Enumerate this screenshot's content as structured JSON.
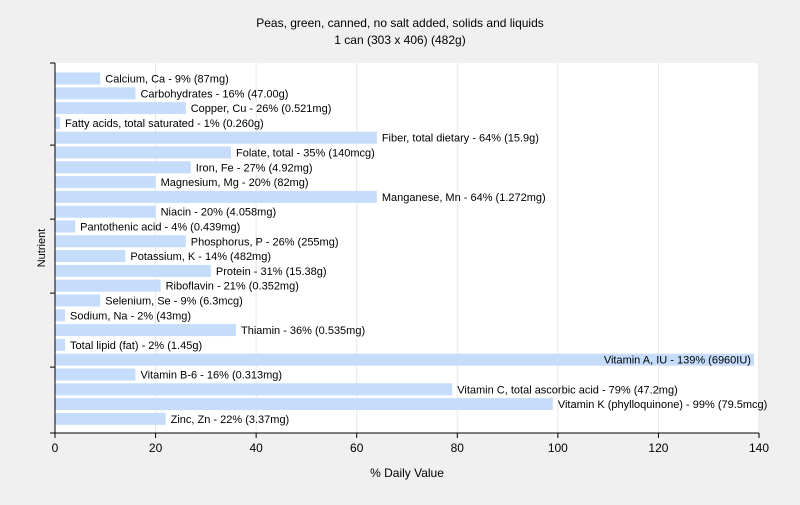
{
  "chart_data": {
    "type": "bar",
    "orientation": "horizontal",
    "title": "Peas, green, canned, no salt added, solids and liquids",
    "subtitle": "1 can (303 x 406) (482g)",
    "xlabel": "% Daily Value",
    "ylabel": "Nutrient",
    "xlim": [
      0,
      140
    ],
    "xticks": [
      "0",
      "20",
      "40",
      "60",
      "80",
      "100",
      "120",
      "140"
    ],
    "grid": true,
    "bar_color": "#c5ddfb",
    "background": "#f0f0f0",
    "plot_background": "#ffffff",
    "categories": [
      "Calcium, Ca",
      "Carbohydrates",
      "Copper, Cu",
      "Fatty acids, total saturated",
      "Fiber, total dietary",
      "Folate, total",
      "Iron, Fe",
      "Magnesium, Mg",
      "Manganese, Mn",
      "Niacin",
      "Pantothenic acid",
      "Phosphorus, P",
      "Potassium, K",
      "Protein",
      "Riboflavin",
      "Selenium, Se",
      "Sodium, Na",
      "Thiamin",
      "Total lipid (fat)",
      "Vitamin A, IU",
      "Vitamin B-6",
      "Vitamin C, total ascorbic acid",
      "Vitamin K (phylloquinone)",
      "Zinc, Zn"
    ],
    "values": [
      9,
      16,
      26,
      1,
      64,
      35,
      27,
      20,
      64,
      20,
      4,
      26,
      14,
      31,
      21,
      9,
      2,
      36,
      2,
      139,
      16,
      79,
      99,
      22
    ],
    "labels": [
      "Calcium, Ca - 9% (87mg)",
      "Carbohydrates - 16% (47.00g)",
      "Copper, Cu - 26% (0.521mg)",
      "Fatty acids, total saturated - 1% (0.260g)",
      "Fiber, total dietary - 64% (15.9g)",
      "Folate, total - 35% (140mcg)",
      "Iron, Fe - 27% (4.92mg)",
      "Magnesium, Mg - 20% (82mg)",
      "Manganese, Mn - 64% (1.272mg)",
      "Niacin - 20% (4.058mg)",
      "Pantothenic acid - 4% (0.439mg)",
      "Phosphorus, P - 26% (255mg)",
      "Potassium, K - 14% (482mg)",
      "Protein - 31% (15.38g)",
      "Riboflavin - 21% (0.352mg)",
      "Selenium, Se - 9% (6.3mcg)",
      "Sodium, Na - 2% (43mg)",
      "Thiamin - 36% (0.535mg)",
      "Total lipid (fat) - 2% (1.45g)",
      "Vitamin A, IU - 139% (6960IU)",
      "Vitamin B-6 - 16% (0.313mg)",
      "Vitamin C, total ascorbic acid - 79% (47.2mg)",
      "Vitamin K (phylloquinone) - 99% (79.5mcg)",
      "Zinc, Zn - 22% (3.37mg)"
    ]
  }
}
